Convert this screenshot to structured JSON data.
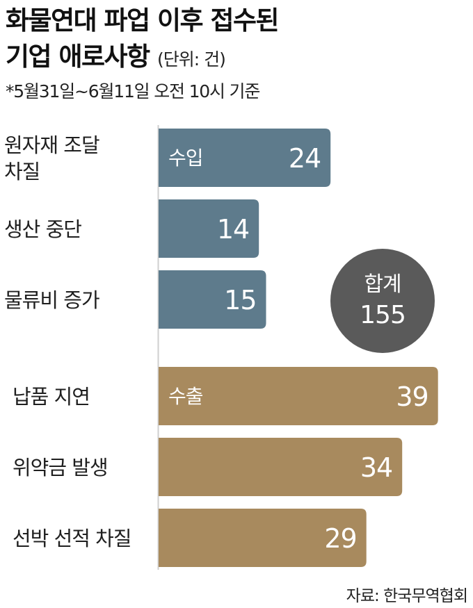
{
  "title": {
    "line1": "화물연대 파업 이후 접수된",
    "line2": "기업 애로사항",
    "unit": "(단위: 건)"
  },
  "basis": "*5월31일~6월11일 오전 10시 기준",
  "source": "자료: 한국무역협회",
  "colors": {
    "import": "#5e7b8c",
    "export": "#a88a5e",
    "total_circle": "#5a5a5a",
    "bar_text": "#ffffff"
  },
  "chart_data": {
    "type": "bar",
    "orientation": "horizontal",
    "groups": [
      {
        "name": "수입",
        "items": [
          {
            "label": [
              "원자재 조달",
              "차질"
            ],
            "value": 24
          },
          {
            "label": [
              "생산 중단"
            ],
            "value": 14
          },
          {
            "label": [
              "물류비 증가"
            ],
            "value": 15
          }
        ]
      },
      {
        "name": "수출",
        "items": [
          {
            "label": [
              "납품 지연"
            ],
            "value": 39
          },
          {
            "label": [
              "위약금 발생"
            ],
            "value": 34
          },
          {
            "label": [
              "선박 선적 차질"
            ],
            "value": 29
          }
        ]
      }
    ],
    "total": {
      "label": "합계",
      "value": 155
    }
  }
}
